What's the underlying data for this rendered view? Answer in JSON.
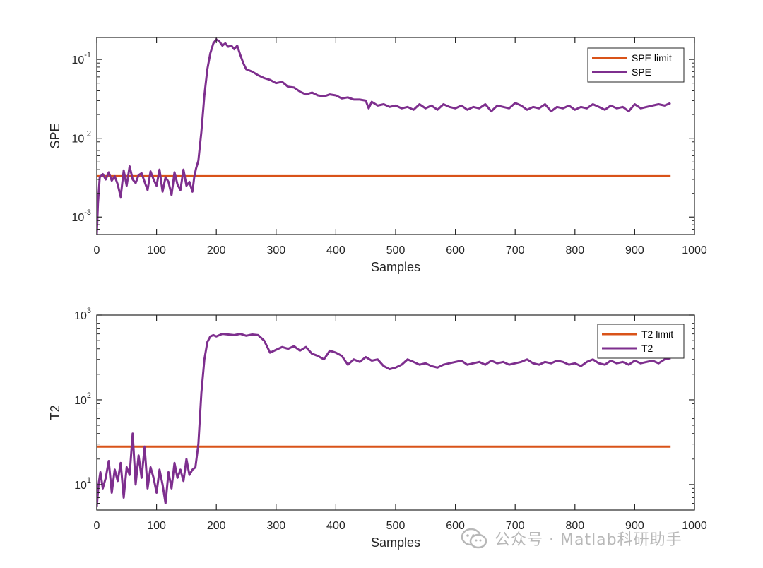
{
  "colors": {
    "limit": "#D95319",
    "series": "#7E2F8E",
    "axis": "#262626"
  },
  "chart_data": [
    {
      "type": "line",
      "xlabel": "Samples",
      "ylabel": "SPE",
      "xlim": [
        0,
        1000
      ],
      "ylim": [
        0.0006,
        0.19
      ],
      "yscale": "log",
      "xticks": [
        "0",
        "100",
        "200",
        "300",
        "400",
        "500",
        "600",
        "700",
        "800",
        "900",
        "1000"
      ],
      "yticks": [
        {
          "base": "10",
          "exp": "-3",
          "value": 0.001
        },
        {
          "base": "10",
          "exp": "-2",
          "value": 0.01
        },
        {
          "base": "10",
          "exp": "-1",
          "value": 0.1
        }
      ],
      "legend_position": "top-right",
      "grid": false,
      "series": [
        {
          "name": "SPE limit",
          "color": "#D95319",
          "x": [
            0,
            960
          ],
          "y": [
            0.0033,
            0.0033
          ]
        },
        {
          "name": "SPE",
          "color": "#7E2F8E",
          "x": [
            0,
            2,
            5,
            10,
            15,
            20,
            25,
            30,
            35,
            40,
            45,
            50,
            55,
            60,
            65,
            70,
            75,
            80,
            85,
            90,
            95,
            100,
            105,
            110,
            115,
            120,
            125,
            130,
            135,
            140,
            145,
            150,
            155,
            160,
            163,
            166,
            170,
            175,
            180,
            185,
            190,
            195,
            200,
            205,
            210,
            215,
            220,
            225,
            230,
            235,
            240,
            245,
            250,
            260,
            270,
            280,
            290,
            300,
            310,
            320,
            330,
            340,
            350,
            360,
            370,
            380,
            390,
            400,
            410,
            420,
            430,
            440,
            450,
            455,
            460,
            470,
            480,
            490,
            500,
            510,
            520,
            530,
            540,
            550,
            560,
            570,
            580,
            590,
            600,
            610,
            620,
            630,
            640,
            650,
            660,
            670,
            680,
            690,
            700,
            710,
            720,
            730,
            740,
            750,
            760,
            770,
            780,
            790,
            800,
            810,
            820,
            830,
            840,
            850,
            860,
            870,
            880,
            890,
            900,
            910,
            920,
            930,
            940,
            950,
            960
          ],
          "y": [
            0.0006,
            0.0015,
            0.0032,
            0.0035,
            0.003,
            0.0037,
            0.0029,
            0.0033,
            0.0026,
            0.0018,
            0.0039,
            0.0025,
            0.0044,
            0.003,
            0.0027,
            0.0034,
            0.0036,
            0.0028,
            0.0022,
            0.0038,
            0.003,
            0.0025,
            0.004,
            0.0021,
            0.0032,
            0.0028,
            0.0019,
            0.0037,
            0.0026,
            0.0022,
            0.004,
            0.0025,
            0.0028,
            0.0021,
            0.0032,
            0.0041,
            0.0052,
            0.012,
            0.035,
            0.075,
            0.12,
            0.16,
            0.18,
            0.17,
            0.15,
            0.16,
            0.145,
            0.15,
            0.135,
            0.15,
            0.115,
            0.09,
            0.075,
            0.07,
            0.063,
            0.058,
            0.055,
            0.05,
            0.052,
            0.045,
            0.044,
            0.039,
            0.036,
            0.038,
            0.035,
            0.034,
            0.036,
            0.035,
            0.032,
            0.033,
            0.031,
            0.031,
            0.03,
            0.024,
            0.029,
            0.026,
            0.027,
            0.025,
            0.026,
            0.024,
            0.025,
            0.023,
            0.027,
            0.024,
            0.026,
            0.023,
            0.027,
            0.025,
            0.024,
            0.026,
            0.023,
            0.025,
            0.024,
            0.027,
            0.022,
            0.026,
            0.025,
            0.024,
            0.028,
            0.026,
            0.023,
            0.025,
            0.024,
            0.027,
            0.022,
            0.025,
            0.024,
            0.026,
            0.023,
            0.025,
            0.024,
            0.027,
            0.025,
            0.023,
            0.026,
            0.024,
            0.025,
            0.022,
            0.027,
            0.024,
            0.025,
            0.026,
            0.027,
            0.026,
            0.028
          ]
        }
      ]
    },
    {
      "type": "line",
      "xlabel": "Samples",
      "ylabel": "T2",
      "xlim": [
        0,
        1000
      ],
      "ylim": [
        5,
        1000
      ],
      "yscale": "log",
      "xticks": [
        "0",
        "100",
        "200",
        "300",
        "400",
        "500",
        "600",
        "700",
        "800",
        "900",
        "1000"
      ],
      "yticks": [
        {
          "base": "10",
          "exp": "1",
          "value": 10
        },
        {
          "base": "10",
          "exp": "2",
          "value": 100
        },
        {
          "base": "10",
          "exp": "3",
          "value": 1000
        }
      ],
      "legend_position": "top-right",
      "grid": false,
      "series": [
        {
          "name": "T2 limit",
          "color": "#D95319",
          "x": [
            0,
            960
          ],
          "y": [
            28,
            28
          ]
        },
        {
          "name": "T2",
          "color": "#7E2F8E",
          "x": [
            0,
            3,
            6,
            10,
            15,
            20,
            25,
            30,
            35,
            40,
            45,
            50,
            55,
            60,
            65,
            70,
            75,
            80,
            85,
            90,
            95,
            100,
            105,
            110,
            115,
            120,
            125,
            130,
            135,
            140,
            145,
            150,
            155,
            160,
            165,
            170,
            175,
            180,
            185,
            190,
            195,
            200,
            210,
            220,
            230,
            240,
            250,
            260,
            270,
            280,
            290,
            300,
            310,
            320,
            330,
            340,
            350,
            360,
            370,
            380,
            390,
            400,
            410,
            420,
            430,
            440,
            450,
            460,
            470,
            480,
            490,
            500,
            510,
            520,
            530,
            540,
            550,
            560,
            570,
            580,
            590,
            600,
            610,
            620,
            630,
            640,
            650,
            660,
            670,
            680,
            690,
            700,
            710,
            720,
            730,
            740,
            750,
            760,
            770,
            780,
            790,
            800,
            810,
            820,
            830,
            840,
            850,
            860,
            870,
            880,
            890,
            900,
            910,
            920,
            930,
            940,
            950,
            960
          ],
          "y": [
            5.5,
            10,
            14,
            9,
            12,
            19,
            8,
            15,
            11,
            18,
            7,
            16,
            13,
            40,
            10,
            22,
            12,
            28,
            9,
            16,
            12,
            8,
            15,
            10,
            6,
            14,
            9,
            18,
            12,
            15,
            11,
            20,
            13,
            15,
            16,
            30,
            120,
            300,
            480,
            560,
            580,
            560,
            600,
            590,
            580,
            600,
            570,
            590,
            580,
            500,
            360,
            390,
            420,
            400,
            430,
            380,
            420,
            350,
            330,
            300,
            380,
            360,
            330,
            260,
            300,
            280,
            320,
            290,
            300,
            250,
            230,
            240,
            260,
            300,
            280,
            260,
            270,
            250,
            240,
            260,
            270,
            280,
            290,
            260,
            270,
            280,
            260,
            290,
            270,
            280,
            260,
            270,
            280,
            300,
            270,
            260,
            280,
            270,
            290,
            280,
            260,
            270,
            250,
            280,
            300,
            270,
            260,
            290,
            270,
            280,
            260,
            290,
            270,
            280,
            290,
            270,
            300,
            310
          ]
        }
      ]
    }
  ],
  "watermark": {
    "text": "公众号 · Matlab科研助手",
    "icon": "wechat-icon"
  }
}
